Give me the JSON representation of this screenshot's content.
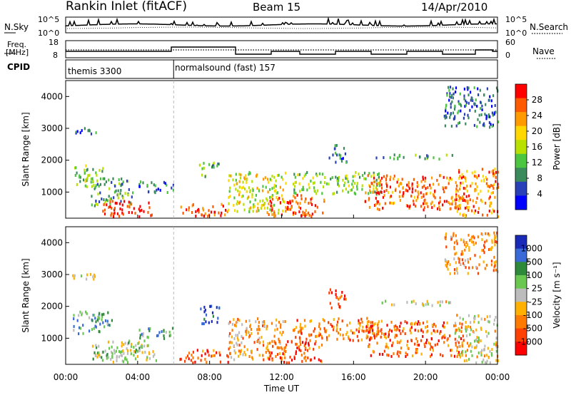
{
  "header": {
    "title": "Rankin Inlet (fitACF)",
    "beam": "Beam 15",
    "date": "14/Apr/2010"
  },
  "top_panels": {
    "nsky_label": "N.Sky",
    "nsearch_label": "N.Search",
    "left_axis_ticks": [
      "10^5",
      "10^0"
    ],
    "right_axis_ticks": [
      "10^5",
      "10^0"
    ],
    "freq_label_1": "Freq.",
    "freq_label_2": "[MHz]",
    "freq_ticks": [
      "18",
      "8"
    ],
    "nave_label": "Nave",
    "nave_ticks": [
      "60",
      "0"
    ],
    "cpid_label": "CPID",
    "cpid_segments": [
      {
        "text": "themis 3300",
        "start_hour": 0
      },
      {
        "text": "normalsound (fast) 157",
        "start_hour": 6
      }
    ]
  },
  "chart_data": [
    {
      "type": "heatmap",
      "panel": "power",
      "ylabel": "Slant Range [km]",
      "ylim": [
        180,
        4500
      ],
      "y_ticks": [
        "4000",
        "3000",
        "2000",
        "1000"
      ],
      "xlim": [
        0,
        24
      ],
      "colorbar_label": "Power [dB]",
      "colorbar_ticks": [
        "28",
        "24",
        "20",
        "16",
        "12",
        "8",
        "4"
      ],
      "colorbar_colors": [
        "#ff0000",
        "#ff5a00",
        "#ff9a00",
        "#ffd800",
        "#b8e000",
        "#4cc540",
        "#3a8a5c",
        "#2a40b8",
        "#0000ff"
      ],
      "regions": [
        {
          "x0": 0.1,
          "x1": 1.7,
          "y0": 2800,
          "y1": 3000,
          "c": 0.2
        },
        {
          "x0": 0.4,
          "x1": 2.1,
          "y0": 1100,
          "y1": 1800,
          "c": 0.4
        },
        {
          "x0": 1.4,
          "x1": 3.7,
          "y0": 500,
          "y1": 1400,
          "c": 0.35
        },
        {
          "x0": 2.0,
          "x1": 4.8,
          "y0": 200,
          "y1": 700,
          "c": 0.95
        },
        {
          "x0": 4.0,
          "x1": 6.1,
          "y0": 950,
          "y1": 1300,
          "c": 0.25
        },
        {
          "x0": 6.3,
          "x1": 9.0,
          "y0": 200,
          "y1": 600,
          "c": 0.85
        },
        {
          "x0": 7.4,
          "x1": 8.5,
          "y0": 1400,
          "y1": 1900,
          "c": 0.3
        },
        {
          "x0": 9.0,
          "x1": 12.2,
          "y0": 300,
          "y1": 1600,
          "c": 0.55
        },
        {
          "x0": 11.2,
          "x1": 14.4,
          "y0": 200,
          "y1": 900,
          "c": 0.85
        },
        {
          "x0": 12.6,
          "x1": 17.6,
          "y0": 900,
          "y1": 1600,
          "c": 0.45
        },
        {
          "x0": 14.6,
          "x1": 15.6,
          "y0": 1900,
          "y1": 2500,
          "c": 0.25
        },
        {
          "x0": 16.6,
          "x1": 22.2,
          "y0": 400,
          "y1": 1500,
          "c": 0.8
        },
        {
          "x0": 17.2,
          "x1": 21.6,
          "y0": 2000,
          "y1": 2150,
          "c": 0.35
        },
        {
          "x0": 21.6,
          "x1": 24.0,
          "y0": 200,
          "y1": 1700,
          "c": 0.75
        },
        {
          "x0": 21.0,
          "x1": 24.0,
          "y0": 3000,
          "y1": 4300,
          "c": 0.2
        }
      ]
    },
    {
      "type": "heatmap",
      "panel": "velocity",
      "ylabel": "Slant Range [km]",
      "xlabel": "Time UT",
      "ylim": [
        180,
        4500
      ],
      "y_ticks": [
        "4000",
        "3000",
        "2000",
        "1000"
      ],
      "xlim": [
        0,
        24
      ],
      "x_ticks": [
        "00:00",
        "04:00",
        "08:00",
        "12:00",
        "16:00",
        "20:00",
        "00:00"
      ],
      "colorbar_label": "Velocity [m s⁻¹]",
      "colorbar_ticks": [
        "1000",
        "500",
        "100",
        "25",
        "-25",
        "-100",
        "-500",
        "-1000"
      ],
      "colorbar_colors": [
        "#1a2ab8",
        "#3a6ad8",
        "#2e8a3a",
        "#6ac850",
        "#bcbcbc",
        "#ffb000",
        "#ff7a00",
        "#ff4000",
        "#ff0000"
      ],
      "regions": [
        {
          "x0": 0.1,
          "x1": 1.7,
          "y0": 2800,
          "y1": 3000,
          "c": 0.5
        },
        {
          "x0": 0.4,
          "x1": 2.6,
          "y0": 1100,
          "y1": 1800,
          "c": 0.3
        },
        {
          "x0": 1.4,
          "x1": 4.6,
          "y0": 300,
          "y1": 900,
          "c": 0.45
        },
        {
          "x0": 2.0,
          "x1": 5.0,
          "y0": 200,
          "y1": 600,
          "c": 0.5
        },
        {
          "x0": 4.0,
          "x1": 6.1,
          "y0": 950,
          "y1": 1300,
          "c": 0.3
        },
        {
          "x0": 6.3,
          "x1": 9.0,
          "y0": 200,
          "y1": 600,
          "c": 0.8
        },
        {
          "x0": 7.4,
          "x1": 8.5,
          "y0": 1400,
          "y1": 2000,
          "c": 0.1
        },
        {
          "x0": 9.0,
          "x1": 12.2,
          "y0": 300,
          "y1": 1600,
          "c": 0.65
        },
        {
          "x0": 11.2,
          "x1": 14.4,
          "y0": 200,
          "y1": 900,
          "c": 0.82
        },
        {
          "x0": 12.6,
          "x1": 17.6,
          "y0": 900,
          "y1": 1600,
          "c": 0.75
        },
        {
          "x0": 14.6,
          "x1": 15.6,
          "y0": 1900,
          "y1": 2500,
          "c": 0.82
        },
        {
          "x0": 16.6,
          "x1": 22.2,
          "y0": 400,
          "y1": 1500,
          "c": 0.78
        },
        {
          "x0": 17.2,
          "x1": 21.6,
          "y0": 2000,
          "y1": 2150,
          "c": 0.5
        },
        {
          "x0": 21.6,
          "x1": 24.0,
          "y0": 200,
          "y1": 1700,
          "c": 0.55
        },
        {
          "x0": 21.0,
          "x1": 24.0,
          "y0": 3000,
          "y1": 4300,
          "c": 0.7
        }
      ]
    }
  ]
}
